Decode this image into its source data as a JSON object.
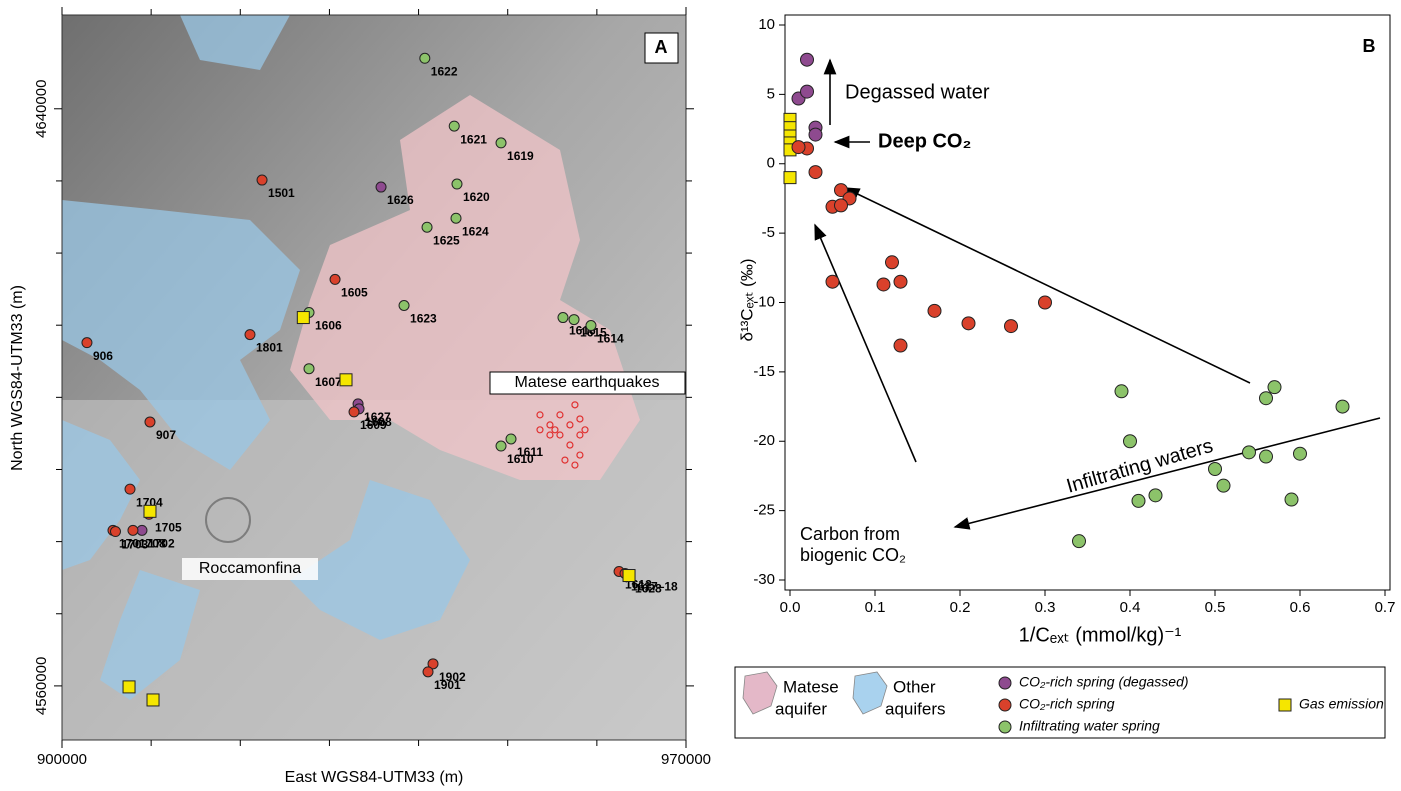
{
  "chart_data": [
    {
      "type": "map",
      "title": "A",
      "xlabel": "East WGS84-UTM33 (m)",
      "ylabel": "North WGS84-UTM33 (m)",
      "xlim": [
        900000,
        970000
      ],
      "ylim": [
        4552500,
        4653000
      ],
      "xticks": [
        900000,
        970000
      ],
      "xminorticks": [
        910000,
        920000,
        930000,
        940000,
        950000,
        960000
      ],
      "yticks": [
        4560000,
        4640000
      ],
      "yminorticks": [
        4570000,
        4580000,
        4590000,
        4600000,
        4610000,
        4620000,
        4630000
      ],
      "place_label": "Roccamonfina",
      "earthquakes": {
        "name": "Matese earthquakes",
        "color": "#e03030",
        "x": [
          953620,
          954740,
          955860,
          956980,
          958100,
          955860,
          956980,
          958100,
          954740,
          957540,
          958670,
          956420,
          955300,
          957540,
          953620,
          958100
        ],
        "y": [
          4597570,
          4596180,
          4597570,
          4596180,
          4594780,
          4594780,
          4593390,
          4592000,
          4594780,
          4598960,
          4595500,
          4591300,
          4595500,
          4590610,
          4595500,
          4597000
        ]
      },
      "series": [
        {
          "color": "#8e4a8f",
          "labels": [
            "1626",
            "1627",
            "1608",
            "1702"
          ],
          "x": [
            935790,
            933210,
            933320,
            908970
          ],
          "y": [
            4629150,
            4599100,
            4598400,
            4581560
          ]
        },
        {
          "color": "#d9412b",
          "labels": [
            "1501",
            "1605",
            "1801",
            "906",
            "1609",
            "907",
            "1704",
            "1705",
            "1701",
            "1703",
            "1708",
            "1612",
            "1617–18",
            "1902",
            "1901"
          ],
          "x": [
            922440,
            930630,
            921090,
            902800,
            932760,
            909870,
            907630,
            909760,
            905720,
            906000,
            907960,
            962490,
            963160,
            941620,
            941060
          ],
          "y": [
            4630120,
            4616350,
            4608700,
            4607580,
            4597980,
            4596590,
            4587270,
            4583790,
            4581560,
            4581400,
            4581560,
            4575860,
            4575580,
            4563060,
            4561950
          ]
        },
        {
          "color": "#8cc36a",
          "labels": [
            "1622",
            "1621",
            "1619",
            "1620",
            "1624",
            "1625",
            "1606",
            "1623",
            "1616",
            "1615",
            "1614",
            "1607",
            "1610",
            "1611"
          ],
          "x": [
            940700,
            944000,
            949250,
            944310,
            944200,
            940950,
            927710,
            938370,
            956200,
            957440,
            959340,
            927710,
            949250,
            950370
          ],
          "y": [
            4647000,
            4637600,
            4635270,
            4629570,
            4624830,
            4623580,
            4611760,
            4612730,
            4611060,
            4610780,
            4609950,
            4603970,
            4593250,
            4594230
          ]
        },
        {
          "color": "#f5e600",
          "labels": [
            null,
            null,
            null,
            "1628",
            null,
            null
          ],
          "x": [
            927070,
            931860,
            909870,
            963610,
            907520,
            910210
          ],
          "y": [
            4611060,
            4602430,
            4584200,
            4575300,
            4559860,
            4558050
          ]
        }
      ]
    },
    {
      "type": "scatter",
      "title": "B",
      "xlabel": "1/Cₑₓₜ (mmol/kg)⁻¹",
      "ylabel": "δ¹³Cₑₓₜ (‰)",
      "xlim": [
        0,
        0.7
      ],
      "ylim": [
        -30,
        10
      ],
      "xticks": [
        {
          "value": 0,
          "label": "0.0"
        },
        0.1,
        0.2,
        0.3,
        0.4,
        0.5,
        0.6,
        0.7
      ],
      "yticks": [
        -30,
        -25,
        -20,
        -15,
        -10,
        -5,
        0,
        5,
        10
      ],
      "annotations": [
        "Degassed water",
        "Deep CO₂",
        "Infiltrating waters",
        "Carbon from",
        "biogenic CO₂"
      ],
      "series": [
        {
          "name": "CO₂-rich spring (degassed)",
          "color": "#8e4a8f",
          "marker": "circle",
          "x": [
            0.01,
            0.02,
            0.02,
            0.03,
            0.03
          ],
          "y": [
            4.7,
            5.2,
            7.5,
            2.6,
            2.1
          ]
        },
        {
          "name": "CO₂-rich spring",
          "color": "#d9412b",
          "marker": "circle",
          "x": [
            0.02,
            0.01,
            0.03,
            0.06,
            0.07,
            0.05,
            0.06,
            0.05,
            0.12,
            0.11,
            0.13,
            0.13,
            0.17,
            0.21,
            0.26,
            0.3
          ],
          "y": [
            1.1,
            1.2,
            -0.6,
            -1.9,
            -2.5,
            -3.1,
            -3.0,
            -8.5,
            -7.1,
            -8.7,
            -8.5,
            -13.1,
            -10.6,
            -11.5,
            -11.7,
            -10.0
          ]
        },
        {
          "name": "Infiltrating water spring",
          "color": "#8cc36a",
          "marker": "circle",
          "x": [
            0.39,
            0.57,
            0.56,
            0.65,
            0.4,
            0.54,
            0.56,
            0.6,
            0.5,
            0.51,
            0.43,
            0.41,
            0.59,
            0.34
          ],
          "y": [
            -16.4,
            -16.1,
            -16.9,
            -17.5,
            -20.0,
            -20.8,
            -21.1,
            -20.9,
            -22.0,
            -23.2,
            -23.9,
            -24.3,
            -24.2,
            -27.2
          ]
        },
        {
          "name": "Gas emission",
          "color": "#f5e600",
          "marker": "square",
          "x": [
            0,
            0,
            0,
            0,
            0,
            0
          ],
          "y": [
            3.2,
            2.6,
            2.0,
            1.5,
            1.0,
            -1.0
          ]
        }
      ]
    }
  ],
  "legend": {
    "aquifers": [
      {
        "name": "Matese",
        "name2": "aquifer",
        "color": "#e4b8c8"
      },
      {
        "name": "Other",
        "name2": "aquifers",
        "color": "#a9d2ee"
      }
    ]
  }
}
